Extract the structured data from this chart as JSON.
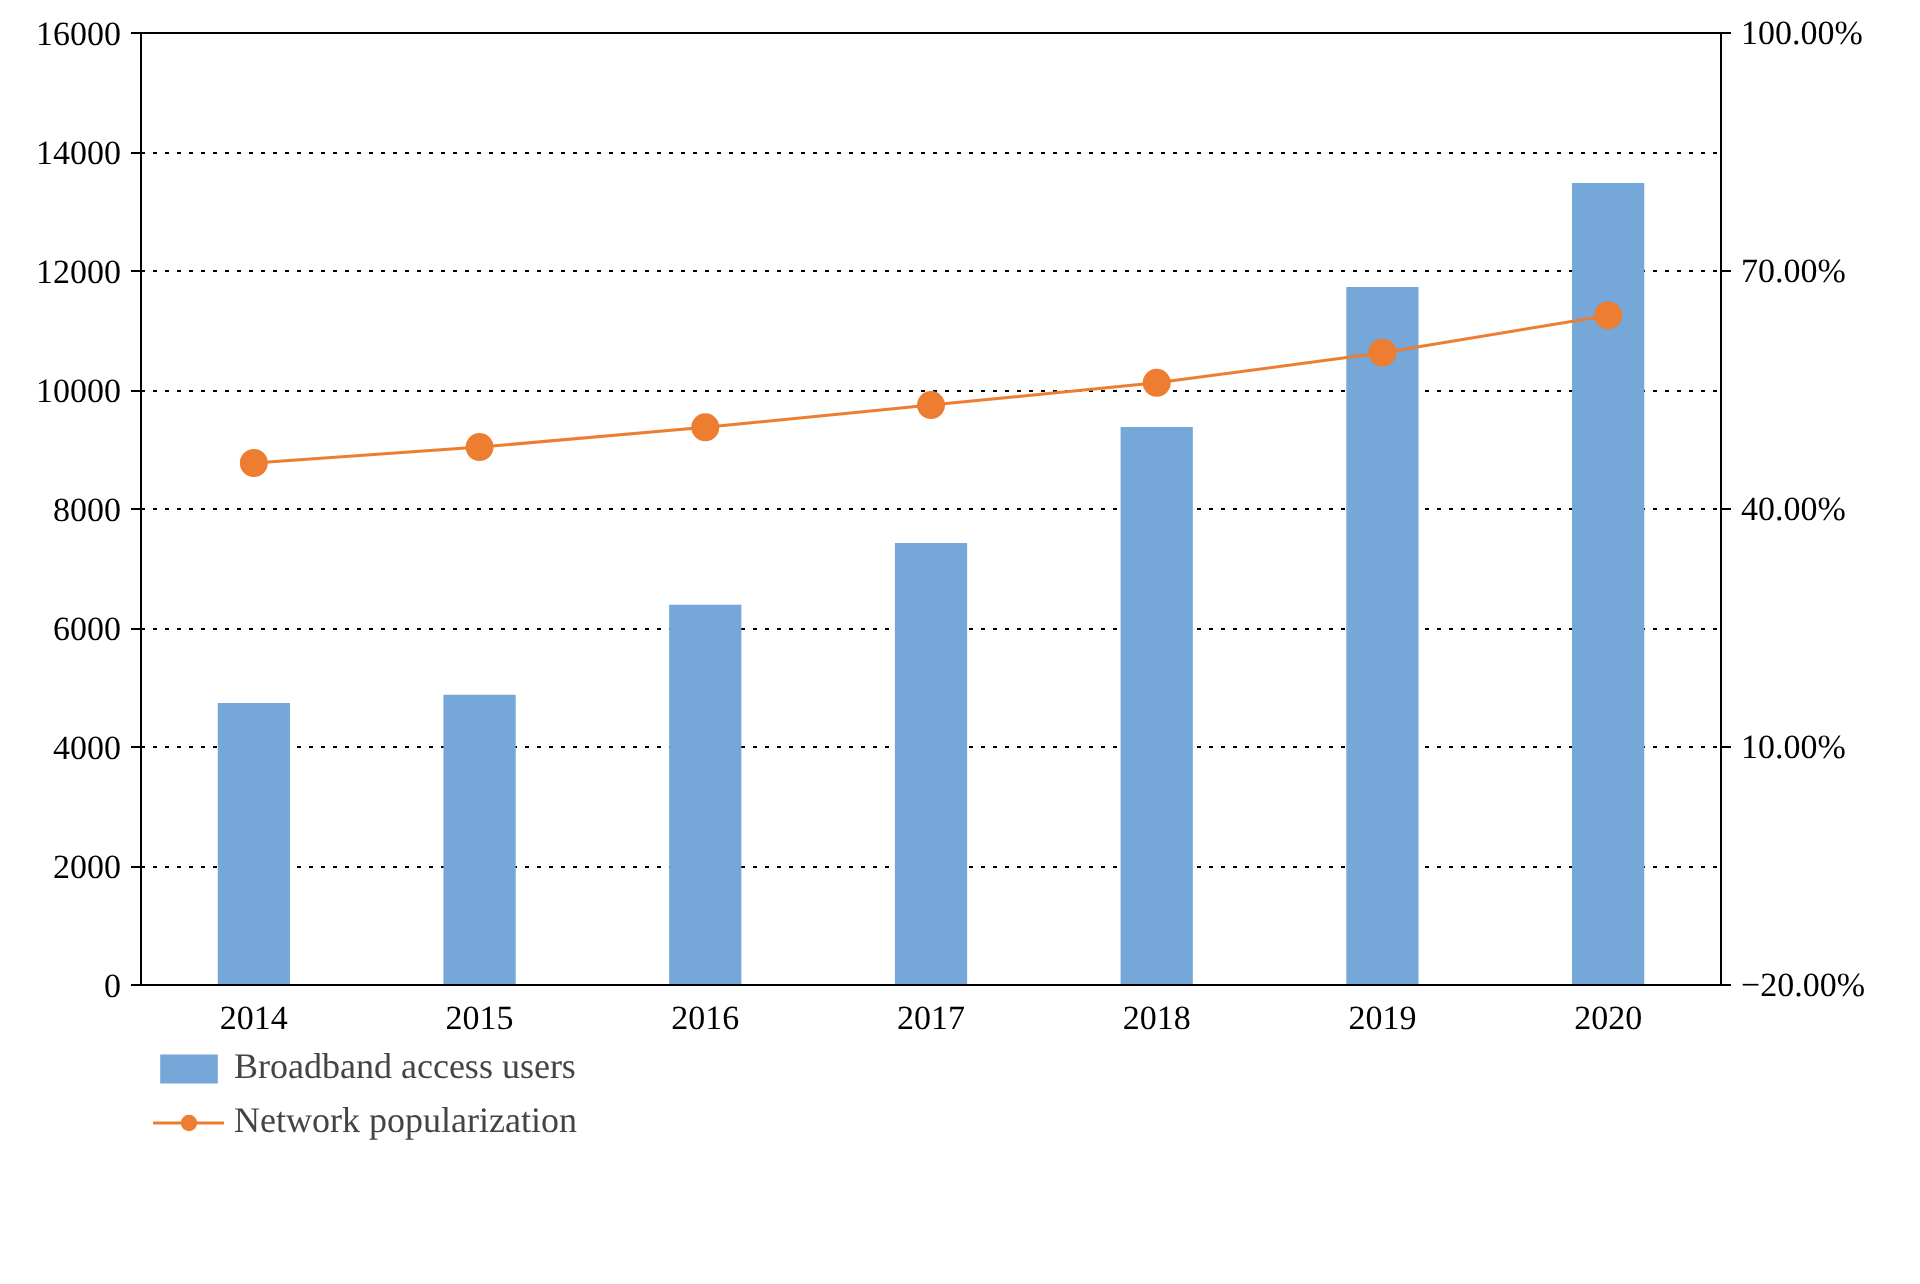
{
  "chart_data": {
    "type": "bar",
    "categories": [
      "2014",
      "2015",
      "2016",
      "2017",
      "2018",
      "2019",
      "2020"
    ],
    "series": [
      {
        "name": "Broadband access users",
        "color": "#75a7d8",
        "values": [
          4740,
          4880,
          6390,
          7430,
          9380,
          11730,
          13480
        ]
      },
      {
        "name": "Network popularization",
        "type": "line",
        "axis": "y2",
        "color": "#ed7d31",
        "values": [
          45.8,
          47.8,
          50.3,
          53.1,
          55.9,
          59.7,
          64.4
        ]
      }
    ],
    "ylim": [
      0,
      16000
    ],
    "yticks": [
      0,
      2000,
      4000,
      6000,
      8000,
      10000,
      12000,
      14000,
      16000
    ],
    "y2lim": [
      -20,
      100
    ],
    "y2ticks": [
      {
        "value": -20,
        "label": "−20.00%"
      },
      {
        "value": 10,
        "label": "10.00%"
      },
      {
        "value": 40,
        "label": "40.00%"
      },
      {
        "value": 70,
        "label": "70.00%"
      },
      {
        "value": 100,
        "label": "100.00%"
      }
    ],
    "grid": "y",
    "legend": "bottom left",
    "marker": "circle",
    "line_style": "solid"
  }
}
